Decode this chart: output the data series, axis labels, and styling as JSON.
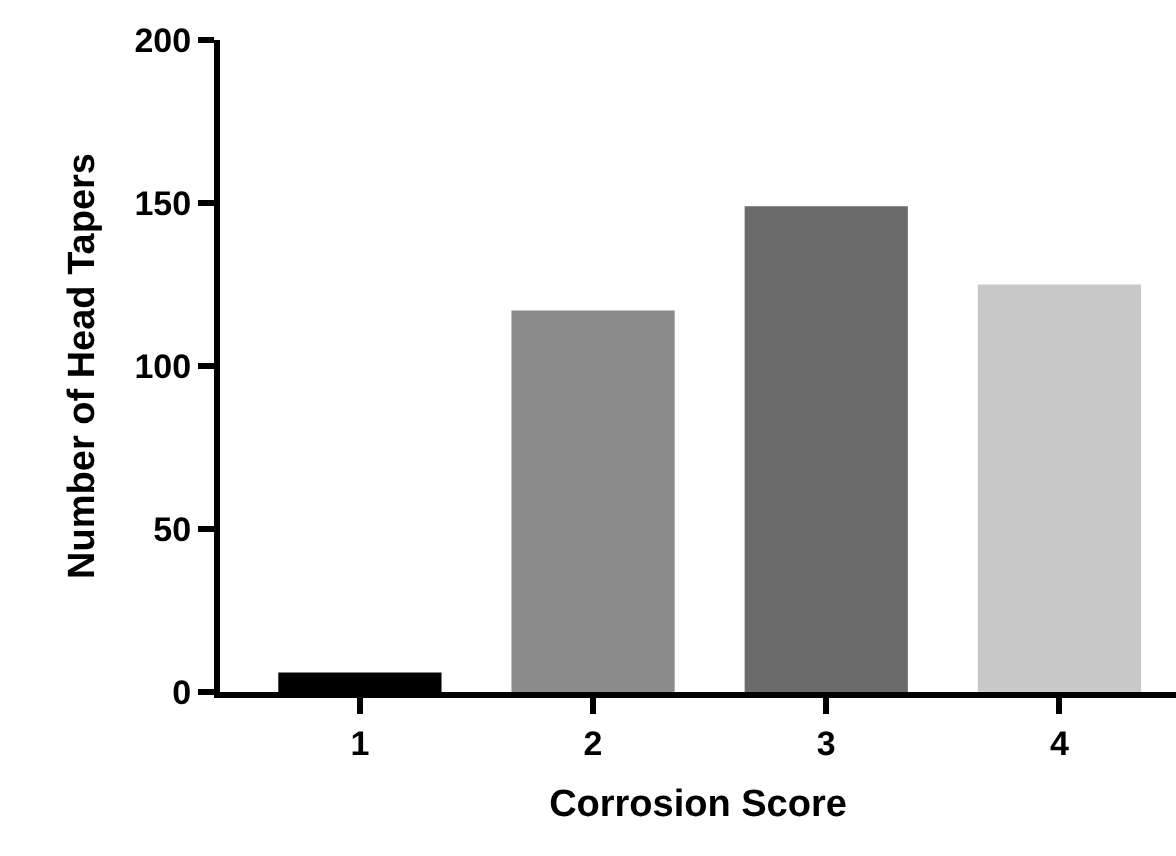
{
  "chart_data": {
    "type": "bar",
    "xlabel": "Corrosion Score",
    "ylabel": "Number of Head Tapers",
    "categories": [
      "1",
      "2",
      "3",
      "4"
    ],
    "values": [
      6,
      117,
      149,
      125
    ],
    "colors": [
      "#000000",
      "#8c8c8c",
      "#6b6b6b",
      "#c8c8c8"
    ],
    "ylim": [
      0,
      200
    ],
    "yticks": [
      0,
      50,
      100,
      150,
      200
    ]
  }
}
